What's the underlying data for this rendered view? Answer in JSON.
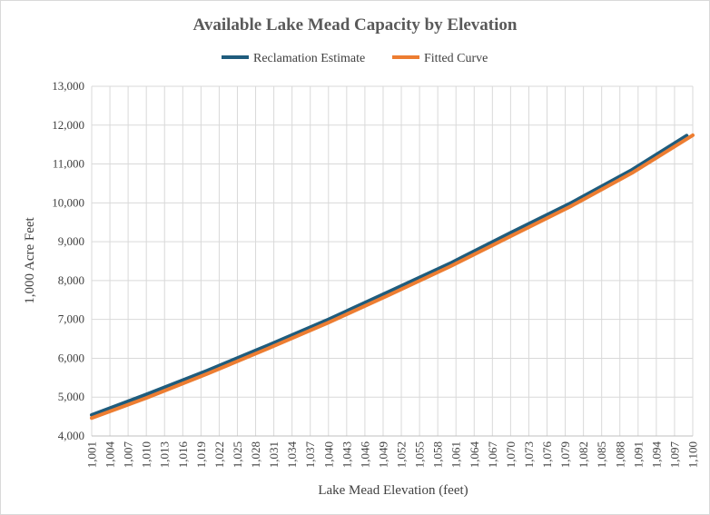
{
  "chart_data": {
    "type": "line",
    "title": "Available Lake Mead Capacity by Elevation",
    "xlabel": "Lake Mead Elevation  (feet)",
    "ylabel": "1,000 Acre Feet",
    "ylim": [
      4000,
      13000
    ],
    "yticks": [
      "4,000",
      "5,000",
      "6,000",
      "7,000",
      "8,000",
      "9,000",
      "10,000",
      "11,000",
      "12,000",
      "13,000"
    ],
    "xlim": [
      1001,
      1100
    ],
    "xticks": [
      "1,001",
      "1,004",
      "1,007",
      "1,010",
      "1,013",
      "1,016",
      "1,019",
      "1,022",
      "1,025",
      "1,028",
      "1,031",
      "1,034",
      "1,037",
      "1,040",
      "1,043",
      "1,046",
      "1,049",
      "1,052",
      "1,055",
      "1,058",
      "1,061",
      "1,064",
      "1,067",
      "1,070",
      "1,073",
      "1,076",
      "1,079",
      "1,082",
      "1,085",
      "1,088",
      "1,091",
      "1,094",
      "1,097",
      "1,100"
    ],
    "grid": true,
    "legend_position": "top",
    "series": [
      {
        "name": "Reclamation Estimate",
        "color": "#1f5c7d",
        "x": [
          1001,
          1010,
          1020,
          1030,
          1040,
          1050,
          1060,
          1070,
          1080,
          1090,
          1099
        ],
        "values": [
          4540,
          5070,
          5680,
          6330,
          7000,
          7720,
          8440,
          9230,
          10000,
          10850,
          11730
        ]
      },
      {
        "name": "Fitted Curve",
        "color": "#ed7d31",
        "x": [
          1001,
          1010,
          1020,
          1030,
          1040,
          1050,
          1060,
          1070,
          1080,
          1090,
          1100
        ],
        "values": [
          4460,
          4980,
          5600,
          6250,
          6920,
          7630,
          8360,
          9140,
          9920,
          10770,
          11740
        ]
      }
    ]
  }
}
